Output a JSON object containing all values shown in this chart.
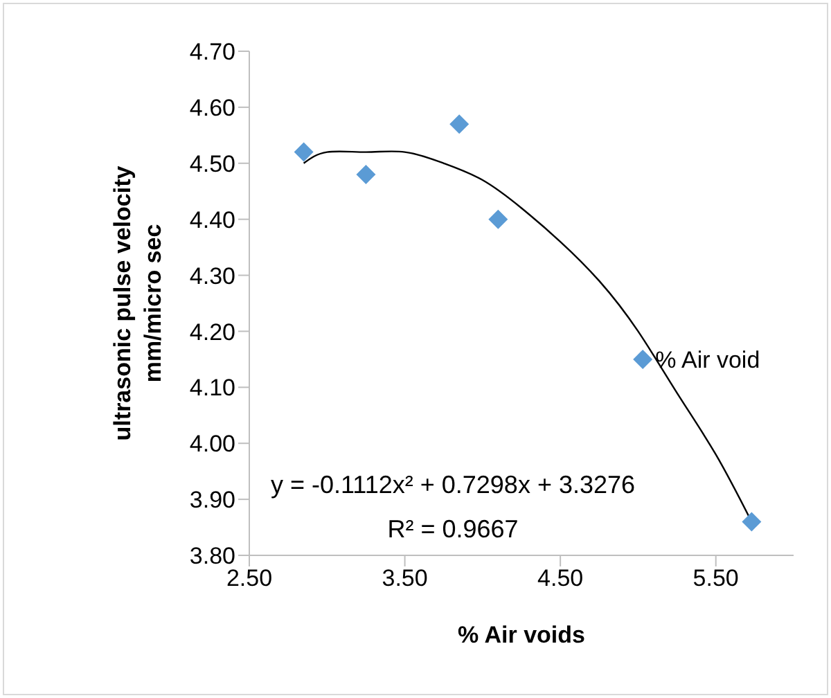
{
  "chart_data": {
    "type": "scatter",
    "xlabel": "% Air voids",
    "ylabel": "ultrasonic pulse velocity\nmm/micro sec",
    "xlim": [
      2.5,
      6.0
    ],
    "xticks": [
      {
        "value": 2.5,
        "label": "2.50"
      },
      {
        "value": 3.5,
        "label": "3.50"
      },
      {
        "value": 4.5,
        "label": "4.50"
      },
      {
        "value": 5.5,
        "label": "5.50"
      }
    ],
    "ylim": [
      3.8,
      4.7
    ],
    "yticks": [
      {
        "value": 3.8,
        "label": "3.80"
      },
      {
        "value": 3.9,
        "label": "3.90"
      },
      {
        "value": 4.0,
        "label": "4.00"
      },
      {
        "value": 4.1,
        "label": "4.10"
      },
      {
        "value": 4.2,
        "label": "4.20"
      },
      {
        "value": 4.3,
        "label": "4.30"
      },
      {
        "value": 4.4,
        "label": "4.40"
      },
      {
        "value": 4.5,
        "label": "4.50"
      },
      {
        "value": 4.6,
        "label": "4.60"
      },
      {
        "value": 4.7,
        "label": "4.70"
      }
    ],
    "grid": false,
    "legend": false,
    "marker": "diamond",
    "series": [
      {
        "name": "% Air void",
        "color": "#5b9bd5",
        "x": [
          2.85,
          3.25,
          3.85,
          4.1,
          5.03,
          5.73
        ],
        "values": [
          4.52,
          4.48,
          4.57,
          4.4,
          4.15,
          3.86
        ]
      },
      {
        "type": "line",
        "color": "#000000",
        "marker": "none",
        "x": [
          2.85,
          3.0,
          3.25,
          3.5,
          3.75,
          4.0,
          4.25,
          4.5,
          4.75,
          5.0,
          5.25,
          5.5,
          5.73
        ],
        "values": [
          4.5,
          4.52,
          4.52,
          4.52,
          4.5,
          4.47,
          4.42,
          4.36,
          4.29,
          4.2,
          4.09,
          3.98,
          3.86
        ]
      }
    ],
    "annotations": [
      "y = -0.1112x² + 0.7298x + 3.3276",
      "R² = 0.9667"
    ]
  }
}
